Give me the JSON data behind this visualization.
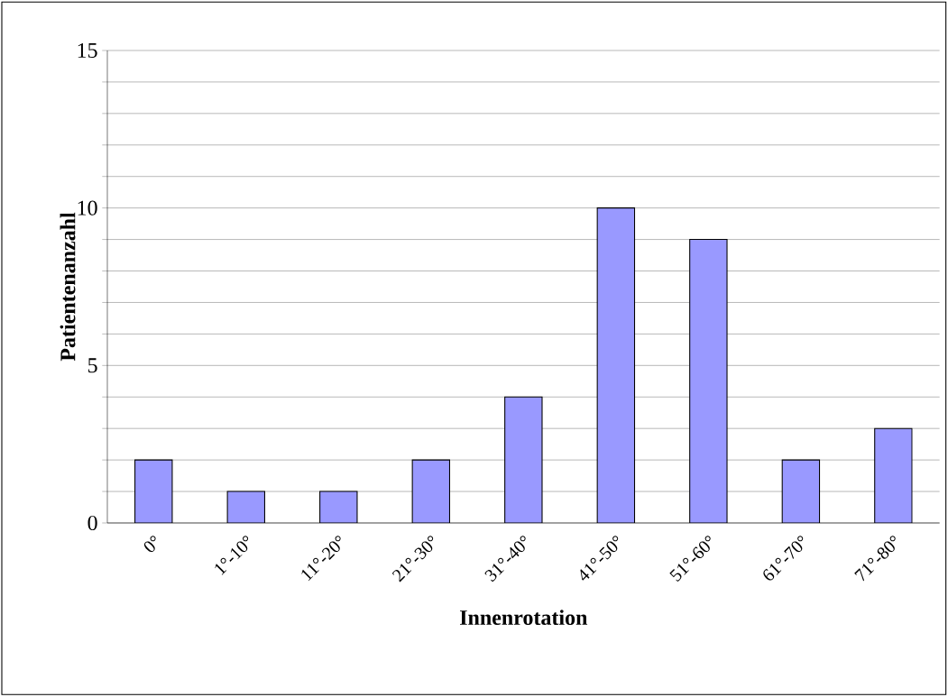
{
  "chart_data": {
    "type": "bar",
    "xlabel": "Innenrotation",
    "ylabel": "Patientenanzahl",
    "categories": [
      "0°",
      "1°-10°",
      "11°-20°",
      "21°-30°",
      "31°-40°",
      "41°-50°",
      "51°-60°",
      "61°-70°",
      "71°-80°"
    ],
    "values": [
      2,
      1,
      1,
      2,
      4,
      10,
      9,
      2,
      3
    ],
    "color": "#9999ff",
    "ylim": [
      0,
      15
    ],
    "yticks": [
      0,
      {
        "value": 1,
        "label": null
      },
      {
        "value": 2,
        "label": null
      },
      {
        "value": 3,
        "label": null
      },
      {
        "value": 4,
        "label": null
      },
      5,
      {
        "value": 6,
        "label": null
      },
      {
        "value": 7,
        "label": null
      },
      {
        "value": 8,
        "label": null
      },
      {
        "value": 9,
        "label": null
      },
      10,
      {
        "value": 11,
        "label": null
      },
      {
        "value": 12,
        "label": null
      },
      {
        "value": 13,
        "label": null
      },
      {
        "value": 14,
        "label": null
      },
      15
    ],
    "grid": "y"
  }
}
